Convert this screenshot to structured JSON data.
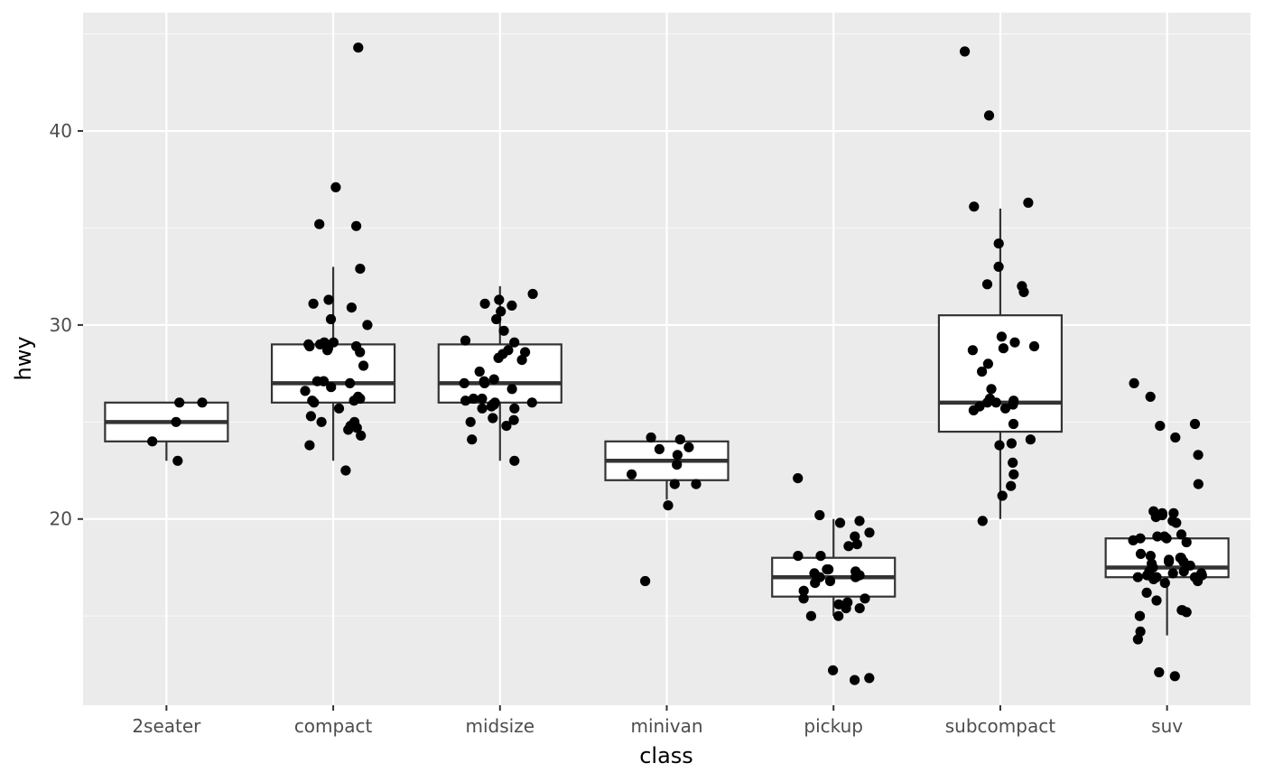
{
  "chart_data": {
    "type": "boxplot",
    "xlabel": "class",
    "ylabel": "hwy",
    "ylim": [
      10.4,
      46.1
    ],
    "y_ticks": [
      20,
      30,
      40
    ],
    "grid": true,
    "legend": "none",
    "colors": {
      "panel": "#ebebeb",
      "grid_major": "#ffffff",
      "grid_minor": "#f7f7f7",
      "box_fill": "#ffffff",
      "box_line": "#333333",
      "point": "#000000",
      "tick_text": "#4d4d4d"
    },
    "categories": [
      "2seater",
      "compact",
      "midsize",
      "minivan",
      "pickup",
      "subcompact",
      "suv"
    ],
    "boxes": [
      {
        "category": "2seater",
        "min": 23,
        "q1": 24,
        "median": 25,
        "q3": 26,
        "max": 26
      },
      {
        "category": "compact",
        "min": 23,
        "q1": 26,
        "median": 27,
        "q3": 29,
        "max": 33
      },
      {
        "category": "midsize",
        "min": 23,
        "q1": 26,
        "median": 27,
        "q3": 29,
        "max": 32
      },
      {
        "category": "minivan",
        "min": 21,
        "q1": 22,
        "median": 23,
        "q3": 24,
        "max": 24
      },
      {
        "category": "pickup",
        "min": 15,
        "q1": 16,
        "median": 17,
        "q3": 18,
        "max": 20
      },
      {
        "category": "subcompact",
        "min": 20,
        "q1": 24.5,
        "median": 26,
        "q3": 30.5,
        "max": 36
      },
      {
        "category": "suv",
        "min": 14,
        "q1": 17,
        "median": 17.5,
        "q3": 19,
        "max": 19
      }
    ],
    "points": [
      {
        "category": "2seater",
        "values": [
          23,
          24,
          25,
          26,
          26
        ]
      },
      {
        "category": "compact",
        "values": [
          22.5,
          23.8,
          24.3,
          24.6,
          24.7,
          24.8,
          25.0,
          25.0,
          25.3,
          25.7,
          26.0,
          26.1,
          26.1,
          26.2,
          26.3,
          26.6,
          26.8,
          27.0,
          27.1,
          27.1,
          27.1,
          27.9,
          28.6,
          28.7,
          28.8,
          28.9,
          28.9,
          29.0,
          29.0,
          29.1,
          29.1,
          30.0,
          30.3,
          30.9,
          31.1,
          31.3,
          32.9,
          35.1,
          35.2,
          37.1,
          44.3
        ]
      },
      {
        "category": "midsize",
        "values": [
          23.0,
          24.1,
          24.8,
          25.0,
          25.1,
          25.2,
          25.7,
          25.7,
          25.8,
          25.9,
          25.9,
          26.0,
          26.0,
          26.1,
          26.2,
          26.2,
          26.7,
          27.0,
          27.0,
          27.1,
          27.2,
          27.6,
          28.2,
          28.3,
          28.5,
          28.6,
          28.7,
          29.1,
          29.2,
          29.7,
          30.3,
          30.7,
          31.0,
          31.1,
          31.3,
          31.6
        ]
      },
      {
        "category": "minivan",
        "values": [
          16.8,
          20.7,
          21.8,
          21.8,
          22.3,
          22.8,
          23.3,
          23.6,
          23.7,
          24.1,
          24.2
        ]
      },
      {
        "category": "pickup",
        "values": [
          11.7,
          11.8,
          12.2,
          15.0,
          15.0,
          15.4,
          15.4,
          15.6,
          15.7,
          15.9,
          15.9,
          16.3,
          16.7,
          16.8,
          17.0,
          17.0,
          17.1,
          17.2,
          17.3,
          17.4,
          17.4,
          18.1,
          18.1,
          18.6,
          18.7,
          19.1,
          19.3,
          19.8,
          19.9,
          20.2,
          22.1
        ]
      },
      {
        "category": "subcompact",
        "values": [
          19.9,
          21.2,
          21.7,
          22.3,
          22.9,
          23.8,
          23.9,
          24.1,
          24.9,
          25.6,
          25.7,
          25.8,
          25.9,
          26.0,
          26.0,
          26.1,
          26.2,
          26.7,
          27.6,
          28.0,
          28.7,
          28.8,
          28.9,
          29.1,
          29.4,
          31.7,
          32.0,
          32.1,
          33.0,
          34.2,
          36.1,
          36.3,
          40.8,
          44.1
        ]
      },
      {
        "category": "suv",
        "values": [
          11.9,
          12.1,
          13.8,
          14.2,
          15.0,
          15.0,
          15.2,
          15.3,
          15.3,
          15.8,
          16.2,
          16.7,
          16.8,
          16.9,
          17.0,
          17.0,
          17.0,
          17.1,
          17.1,
          17.2,
          17.2,
          17.2,
          17.3,
          17.3,
          17.5,
          17.6,
          17.7,
          17.8,
          17.8,
          17.9,
          18.0,
          18.0,
          18.1,
          18.2,
          18.8,
          18.9,
          19.0,
          19.0,
          19.1,
          19.1,
          19.2,
          19.8,
          19.9,
          20.1,
          20.2,
          20.3,
          20.3,
          20.4,
          21.8,
          23.3,
          24.2,
          24.8,
          24.9,
          26.3,
          27.0
        ]
      }
    ]
  }
}
